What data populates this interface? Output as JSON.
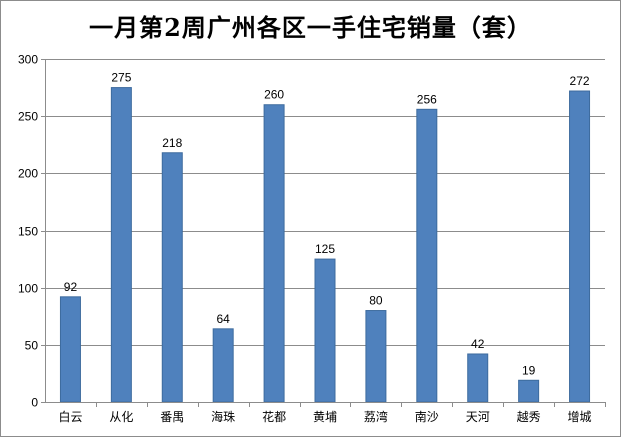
{
  "chart_data": {
    "type": "bar",
    "title": "一月第2周广州各区一手住宅销量（套）",
    "categories": [
      "白云",
      "从化",
      "番禺",
      "海珠",
      "花都",
      "黄埔",
      "荔湾",
      "南沙",
      "天河",
      "越秀",
      "增城"
    ],
    "values": [
      92,
      275,
      218,
      64,
      260,
      125,
      80,
      256,
      42,
      19,
      272
    ],
    "data_labels": [
      "92",
      "275",
      "218",
      "64",
      "260",
      "125",
      "80",
      "256",
      "42",
      "19",
      "272"
    ],
    "yticks": [
      "0",
      "50",
      "100",
      "150",
      "200",
      "250",
      "300"
    ],
    "ylim": [
      0,
      300
    ],
    "grid": true,
    "legend": "none",
    "bar_color": "#4f81bd",
    "bar_edge_color": "#3d6b9e",
    "grid_color": "#8c8c8c"
  }
}
